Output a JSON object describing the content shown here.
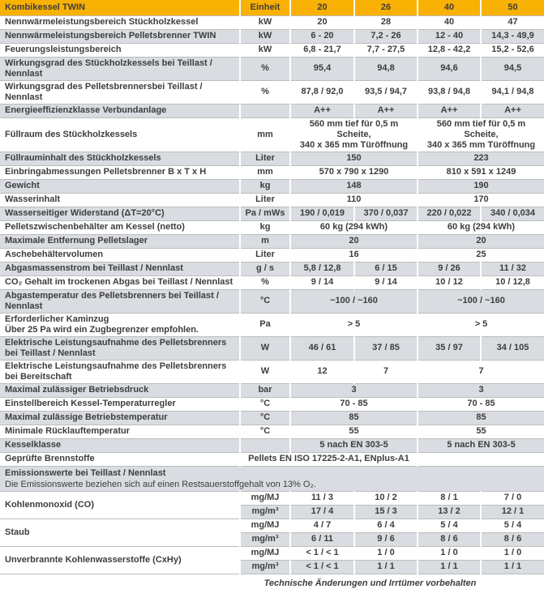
{
  "colors": {
    "header_bg": "#F9B104",
    "band": "#D9DCE0",
    "grid_line": "#BDBDBD",
    "text": "#3D3D3D"
  },
  "header": {
    "title": "Kombikessel TWIN",
    "unit": "Einheit",
    "models": [
      "20",
      "26",
      "40",
      "50"
    ]
  },
  "rows": [
    {
      "label": "Nennwärmeleistungsbereich Stückholzkessel",
      "shade": false,
      "cells": [
        {
          "t": "kW",
          "c": 1
        },
        {
          "t": "20",
          "c": 1
        },
        {
          "t": "28",
          "c": 1
        },
        {
          "t": "40",
          "c": 1
        },
        {
          "t": "47",
          "c": 1
        }
      ]
    },
    {
      "label": "Nennwärmeleistungsbereich Pelletsbrenner TWIN",
      "shade": true,
      "cells": [
        {
          "t": "kW",
          "c": 1
        },
        {
          "t": "6 - 20",
          "c": 1
        },
        {
          "t": "7,2 - 26",
          "c": 1
        },
        {
          "t": "12 - 40",
          "c": 1
        },
        {
          "t": "14,3 - 49,9",
          "c": 1
        }
      ]
    },
    {
      "label": "Feuerungsleistungsbereich",
      "shade": false,
      "cells": [
        {
          "t": "kW",
          "c": 1
        },
        {
          "t": "6,8 - 21,7",
          "c": 1
        },
        {
          "t": "7,7 - 27,5",
          "c": 1
        },
        {
          "t": "12,8 - 42,2",
          "c": 1
        },
        {
          "t": "15,2 - 52,6",
          "c": 1
        }
      ]
    },
    {
      "label": "Wirkungsgrad des Stückholzkessels bei Teillast / Nennlast",
      "shade": true,
      "cells": [
        {
          "t": "%",
          "c": 1
        },
        {
          "t": "95,4",
          "c": 1
        },
        {
          "t": "94,8",
          "c": 1
        },
        {
          "t": "94,6",
          "c": 1
        },
        {
          "t": "94,5",
          "c": 1
        }
      ]
    },
    {
      "label": "Wirkungsgrad des Pelletsbrennersbei Teillast / Nennlast",
      "shade": false,
      "cells": [
        {
          "t": "%",
          "c": 1
        },
        {
          "t": "87,8 / 92,0",
          "c": 1
        },
        {
          "t": "93,5 / 94,7",
          "c": 1
        },
        {
          "t": "93,8 / 94,8",
          "c": 1
        },
        {
          "t": "94,1 / 94,8",
          "c": 1
        }
      ]
    },
    {
      "label": "Energieeffizienzklasse Verbundanlage",
      "shade": true,
      "cells": [
        {
          "t": "",
          "c": 1
        },
        {
          "t": "A++",
          "c": 1
        },
        {
          "t": "A++",
          "c": 1
        },
        {
          "t": "A++",
          "c": 1
        },
        {
          "t": "A++",
          "c": 1
        }
      ]
    },
    {
      "label": "Füllraum des Stückholzkessels",
      "shade": false,
      "tall": true,
      "cells": [
        {
          "t": "mm",
          "c": 1
        },
        {
          "t": "560 mm tief für 0,5 m Scheite,\n340 x 365 mm Türöffnung",
          "c": 2
        },
        {
          "t": "560 mm tief für 0,5 m Scheite,\n340 x 365 mm Türöffnung",
          "c": 2
        }
      ]
    },
    {
      "label": "Füllrauminhalt des Stückholzkessels",
      "shade": true,
      "cells": [
        {
          "t": "Liter",
          "c": 1
        },
        {
          "t": "150",
          "c": 2
        },
        {
          "t": "223",
          "c": 2
        }
      ]
    },
    {
      "label": "Einbringabmessungen Pelletsbrenner B x T x H",
      "shade": false,
      "cells": [
        {
          "t": "mm",
          "c": 1
        },
        {
          "t": "570 x 790 x 1290",
          "c": 2
        },
        {
          "t": "810 x 591 x 1249",
          "c": 2
        }
      ]
    },
    {
      "label": "Gewicht",
      "shade": true,
      "cells": [
        {
          "t": "kg",
          "c": 1
        },
        {
          "t": "148",
          "c": 2
        },
        {
          "t": "190",
          "c": 2
        }
      ]
    },
    {
      "label": "Wasserinhalt",
      "shade": false,
      "cells": [
        {
          "t": "Liter",
          "c": 1
        },
        {
          "t": "110",
          "c": 2
        },
        {
          "t": "170",
          "c": 2
        }
      ]
    },
    {
      "label": "Wasserseitiger Widerstand (ΔT=20°C)",
      "shade": true,
      "cells": [
        {
          "t": "Pa / mWs",
          "c": 1
        },
        {
          "t": "190 / 0,019",
          "c": 1
        },
        {
          "t": "370 / 0,037",
          "c": 1
        },
        {
          "t": "220 / 0,022",
          "c": 1
        },
        {
          "t": "340 / 0,034",
          "c": 1
        }
      ]
    },
    {
      "label": "Pelletszwischenbehälter am Kessel (netto)",
      "shade": false,
      "cells": [
        {
          "t": "kg",
          "c": 1
        },
        {
          "t": "60 kg (294 kWh)",
          "c": 2
        },
        {
          "t": "60 kg (294 kWh)",
          "c": 2
        }
      ]
    },
    {
      "label": "Maximale Entfernung Pelletslager",
      "shade": true,
      "cells": [
        {
          "t": "m",
          "c": 1
        },
        {
          "t": "20",
          "c": 2
        },
        {
          "t": "20",
          "c": 2
        }
      ]
    },
    {
      "label": "Aschebehältervolumen",
      "shade": false,
      "cells": [
        {
          "t": "Liter",
          "c": 1
        },
        {
          "t": "16",
          "c": 2
        },
        {
          "t": "25",
          "c": 2
        }
      ]
    },
    {
      "label": "Abgasmassenstrom bei Teillast / Nennlast",
      "shade": true,
      "cells": [
        {
          "t": "g / s",
          "c": 1
        },
        {
          "t": "5,8 / 12,8",
          "c": 1
        },
        {
          "t": "6 / 15",
          "c": 1
        },
        {
          "t": "9 / 26",
          "c": 1
        },
        {
          "t": "11 / 32",
          "c": 1
        }
      ]
    },
    {
      "label": "CO₂ Gehalt im trockenen Abgas bei Teillast / Nennlast",
      "shade": false,
      "cells": [
        {
          "t": "%",
          "c": 1
        },
        {
          "t": "9 / 14",
          "c": 1
        },
        {
          "t": "9 / 14",
          "c": 1
        },
        {
          "t": "10 / 12",
          "c": 1
        },
        {
          "t": "10 / 12,8",
          "c": 1
        }
      ]
    },
    {
      "label": "Abgastemperatur des Pelletsbrenners bei Teillast / Nennlast",
      "shade": true,
      "cells": [
        {
          "t": "°C",
          "c": 1
        },
        {
          "t": "~100 / ~160",
          "c": 2
        },
        {
          "t": "~100 / ~160",
          "c": 2
        }
      ]
    },
    {
      "label": "Erforderlicher Kaminzug\nÜber 25 Pa wird ein Zugbegrenzer empfohlen.",
      "shade": false,
      "tall": true,
      "cells": [
        {
          "t": "Pa",
          "c": 1
        },
        {
          "t": "> 5",
          "c": 2
        },
        {
          "t": "> 5",
          "c": 2
        }
      ]
    },
    {
      "label": "Elektrische Leistungsaufnahme des Pelletsbrenners\nbei Teillast / Nennlast",
      "shade": true,
      "tall": true,
      "cells": [
        {
          "t": "W",
          "c": 1
        },
        {
          "t": "46 / 61",
          "c": 1
        },
        {
          "t": "37 / 85",
          "c": 1
        },
        {
          "t": "35 / 97",
          "c": 1
        },
        {
          "t": "34 / 105",
          "c": 1
        }
      ]
    },
    {
      "label": "Elektrische Leistungsaufnahme des Pelletsbrenners bei Bereitschaft",
      "shade": false,
      "cells": [
        {
          "t": "W",
          "c": 1
        },
        {
          "t": "12",
          "c": 1
        },
        {
          "t": "7",
          "c": 1
        },
        {
          "t": "7",
          "c": 2
        }
      ]
    },
    {
      "label": "Maximal zulässiger Betriebsdruck",
      "shade": true,
      "cells": [
        {
          "t": "bar",
          "c": 1
        },
        {
          "t": "3",
          "c": 2
        },
        {
          "t": "3",
          "c": 2
        }
      ]
    },
    {
      "label": "Einstellbereich Kessel-Temperaturregler",
      "shade": false,
      "cells": [
        {
          "t": "°C",
          "c": 1
        },
        {
          "t": "70 - 85",
          "c": 2
        },
        {
          "t": "70 - 85",
          "c": 2
        }
      ]
    },
    {
      "label": "Maximal zulässige Betriebstemperatur",
      "shade": true,
      "cells": [
        {
          "t": "°C",
          "c": 1
        },
        {
          "t": "85",
          "c": 2
        },
        {
          "t": "85",
          "c": 2
        }
      ]
    },
    {
      "label": "Minimale Rücklauftemperatur",
      "shade": false,
      "cells": [
        {
          "t": "°C",
          "c": 1
        },
        {
          "t": "55",
          "c": 2
        },
        {
          "t": "55",
          "c": 2
        }
      ]
    },
    {
      "label": "Kesselklasse",
      "shade": true,
      "cells": [
        {
          "t": "",
          "c": 1
        },
        {
          "t": "5 nach EN 303-5",
          "c": 2
        },
        {
          "t": "5 nach EN 303-5",
          "c": 2
        }
      ]
    },
    {
      "label": "Geprüfte Brennstoffe",
      "shade": false,
      "cells": [
        {
          "t": "Pellets EN ISO 17225-2-A1, ENplus-A1",
          "c": 3
        },
        {
          "t": "",
          "c": 2
        }
      ]
    },
    {
      "section": {
        "title": "Emissionswerte bei Teillast / Nennlast",
        "subtitle": "Die Emissionswerte beziehen sich auf einen Restsauerstoffgehalt von 13% O₂."
      },
      "shade": true
    },
    {
      "group": "Kohlenmonoxid (CO)",
      "sub": [
        {
          "shade": false,
          "cells": [
            {
              "t": "mg/MJ",
              "c": 1
            },
            {
              "t": "11 / 3",
              "c": 1
            },
            {
              "t": "10 / 2",
              "c": 1
            },
            {
              "t": "8 / 1",
              "c": 1
            },
            {
              "t": "7 / 0",
              "c": 1
            }
          ]
        },
        {
          "shade": true,
          "cells": [
            {
              "t": "mg/m³",
              "c": 1
            },
            {
              "t": "17 / 4",
              "c": 1
            },
            {
              "t": "15 / 3",
              "c": 1
            },
            {
              "t": "13 / 2",
              "c": 1
            },
            {
              "t": "12 / 1",
              "c": 1
            }
          ]
        }
      ]
    },
    {
      "group": "Staub",
      "sub": [
        {
          "shade": false,
          "cells": [
            {
              "t": "mg/MJ",
              "c": 1
            },
            {
              "t": "4 / 7",
              "c": 1
            },
            {
              "t": "6 / 4",
              "c": 1
            },
            {
              "t": "5 / 4",
              "c": 1
            },
            {
              "t": "5 / 4",
              "c": 1
            }
          ]
        },
        {
          "shade": true,
          "cells": [
            {
              "t": "mg/m³",
              "c": 1
            },
            {
              "t": "6 / 11",
              "c": 1
            },
            {
              "t": "9 / 6",
              "c": 1
            },
            {
              "t": "8 / 6",
              "c": 1
            },
            {
              "t": "8 / 6",
              "c": 1
            }
          ]
        }
      ]
    },
    {
      "group": "Unverbrannte Kohlenwasserstoffe (CxHy)",
      "sub": [
        {
          "shade": false,
          "cells": [
            {
              "t": "mg/MJ",
              "c": 1
            },
            {
              "t": "< 1 / < 1",
              "c": 1
            },
            {
              "t": "1 / 0",
              "c": 1
            },
            {
              "t": "1 / 0",
              "c": 1
            },
            {
              "t": "1 / 0",
              "c": 1
            }
          ]
        },
        {
          "shade": true,
          "cells": [
            {
              "t": "mg/m³",
              "c": 1
            },
            {
              "t": "< 1 / < 1",
              "c": 1
            },
            {
              "t": "1 / 1",
              "c": 1
            },
            {
              "t": "1 / 1",
              "c": 1
            },
            {
              "t": "1 / 1",
              "c": 1
            }
          ]
        }
      ]
    }
  ],
  "footer": {
    "note": "Technische Änderungen und Irrtümer vorbehalten"
  }
}
